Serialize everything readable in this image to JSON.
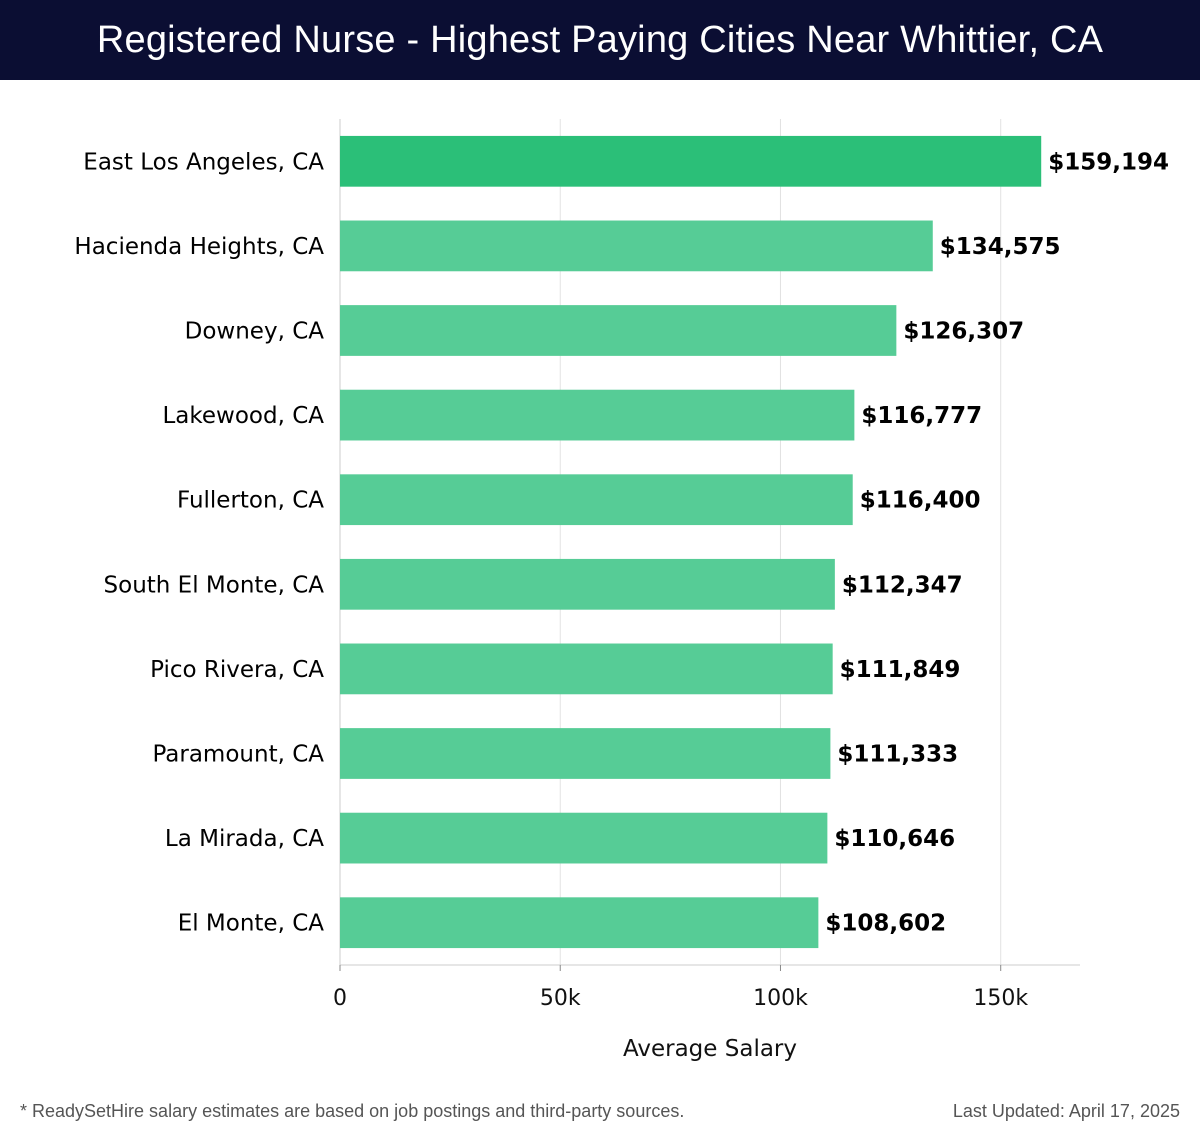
{
  "header": {
    "title": "Registered Nurse - Highest Paying Cities Near Whittier, CA"
  },
  "chart_data": {
    "type": "bar",
    "orientation": "horizontal",
    "title": "Registered Nurse - Highest Paying Cities Near Whittier, CA",
    "xlabel": "Average Salary",
    "ylabel": "",
    "xlim": [
      0,
      168000
    ],
    "xticks": [
      0,
      50000,
      100000,
      150000
    ],
    "xtick_labels": [
      "0",
      "50k",
      "100k",
      "150k"
    ],
    "grid": true,
    "categories": [
      "East Los Angeles, CA",
      "Hacienda Heights, CA",
      "Downey, CA",
      "Lakewood, CA",
      "Fullerton, CA",
      "South El Monte, CA",
      "Pico Rivera, CA",
      "Paramount, CA",
      "La Mirada, CA",
      "El Monte, CA"
    ],
    "values": [
      159194,
      134575,
      126307,
      116777,
      116400,
      112347,
      111849,
      111333,
      110646,
      108602
    ],
    "value_labels": [
      "$159,194",
      "$134,575",
      "$126,307",
      "$116,777",
      "$116,400",
      "$112,347",
      "$111,849",
      "$111,333",
      "$110,646",
      "$108,602"
    ],
    "colors": {
      "highlight_bar": "#2bbf78",
      "bar": "#56cc96",
      "grid": "#e2e2e2",
      "axis": "#cccccc",
      "label": "#000000"
    }
  },
  "footer": {
    "note": "* ReadySetHire salary estimates are based on job postings and third-party sources.",
    "updated": "Last Updated: April 17, 2025"
  }
}
